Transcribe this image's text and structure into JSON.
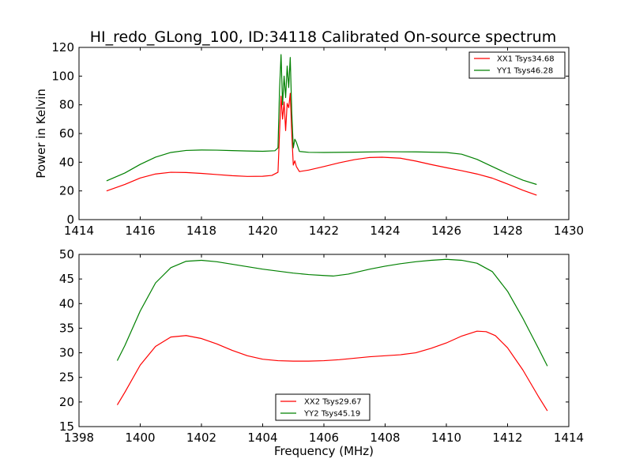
{
  "chart_data": [
    {
      "type": "line",
      "title": "HI_redo_GLong_100, ID:34118 Calibrated On-source spectrum",
      "xlabel": "",
      "ylabel": "Power in Kelvin",
      "xlim": [
        1414,
        1430
      ],
      "ylim": [
        0,
        120
      ],
      "xticks": [
        1414,
        1416,
        1418,
        1420,
        1422,
        1424,
        1426,
        1428,
        1430
      ],
      "yticks": [
        0,
        20,
        40,
        60,
        80,
        100,
        120
      ],
      "grid": false,
      "legend": "top-right",
      "series": [
        {
          "name": "XX1 Tsys34.68",
          "color": "#ff0000",
          "points": [
            [
              1414.9,
              20
            ],
            [
              1415.5,
              24.5
            ],
            [
              1416.0,
              29
            ],
            [
              1416.5,
              31.8
            ],
            [
              1417.0,
              33
            ],
            [
              1417.5,
              32.8
            ],
            [
              1418.0,
              32.2
            ],
            [
              1418.5,
              31.4
            ],
            [
              1419.0,
              30.6
            ],
            [
              1419.5,
              30.1
            ],
            [
              1420.0,
              30.2
            ],
            [
              1420.3,
              30.8
            ],
            [
              1420.5,
              33
            ],
            [
              1420.55,
              60
            ],
            [
              1420.6,
              86
            ],
            [
              1420.65,
              70
            ],
            [
              1420.7,
              82
            ],
            [
              1420.75,
              62
            ],
            [
              1420.8,
              81
            ],
            [
              1420.85,
              78
            ],
            [
              1420.9,
              88
            ],
            [
              1420.95,
              60
            ],
            [
              1421.0,
              38
            ],
            [
              1421.05,
              41
            ],
            [
              1421.1,
              37
            ],
            [
              1421.2,
              33.5
            ],
            [
              1421.5,
              34.5
            ],
            [
              1422.0,
              37
            ],
            [
              1422.5,
              39.6
            ],
            [
              1423.0,
              41.8
            ],
            [
              1423.5,
              43.3
            ],
            [
              1423.9,
              43.5
            ],
            [
              1424.5,
              42.8
            ],
            [
              1425.0,
              40.8
            ],
            [
              1425.5,
              38.4
            ],
            [
              1426.0,
              36.2
            ],
            [
              1426.5,
              34.1
            ],
            [
              1427.0,
              31.8
            ],
            [
              1427.5,
              28.9
            ],
            [
              1428.0,
              24.8
            ],
            [
              1428.5,
              20.5
            ],
            [
              1428.95,
              17
            ]
          ]
        },
        {
          "name": "YY1 Tsys46.28",
          "color": "#008000",
          "points": [
            [
              1414.9,
              27
            ],
            [
              1415.5,
              32.5
            ],
            [
              1416.0,
              38.5
            ],
            [
              1416.5,
              43.5
            ],
            [
              1417.0,
              46.8
            ],
            [
              1417.5,
              48.2
            ],
            [
              1418.0,
              48.5
            ],
            [
              1418.5,
              48.4
            ],
            [
              1419.0,
              48.1
            ],
            [
              1419.5,
              47.8
            ],
            [
              1420.0,
              47.6
            ],
            [
              1420.4,
              48
            ],
            [
              1420.5,
              50
            ],
            [
              1420.55,
              90
            ],
            [
              1420.6,
              115
            ],
            [
              1420.65,
              80
            ],
            [
              1420.7,
              100
            ],
            [
              1420.75,
              85
            ],
            [
              1420.8,
              107
            ],
            [
              1420.85,
              92
            ],
            [
              1420.9,
              113
            ],
            [
              1420.95,
              75
            ],
            [
              1421.0,
              50
            ],
            [
              1421.05,
              56
            ],
            [
              1421.1,
              54
            ],
            [
              1421.2,
              47.5
            ],
            [
              1421.5,
              46.9
            ],
            [
              1422.0,
              46.8
            ],
            [
              1423.0,
              47
            ],
            [
              1424.0,
              47.3
            ],
            [
              1425.0,
              47.2
            ],
            [
              1426.0,
              46.8
            ],
            [
              1426.5,
              45.6
            ],
            [
              1427.0,
              42
            ],
            [
              1427.5,
              37
            ],
            [
              1428.0,
              32
            ],
            [
              1428.5,
              27.5
            ],
            [
              1428.95,
              24.5
            ]
          ]
        }
      ]
    },
    {
      "type": "line",
      "title": "",
      "xlabel": "Frequency (MHz)",
      "ylabel": "",
      "xlim": [
        1398,
        1414
      ],
      "ylim": [
        15,
        50
      ],
      "xticks": [
        1398,
        1400,
        1402,
        1404,
        1406,
        1408,
        1410,
        1412,
        1414
      ],
      "yticks": [
        15,
        20,
        25,
        30,
        35,
        40,
        45,
        50
      ],
      "grid": false,
      "legend": "bottom-center",
      "series": [
        {
          "name": "XX2 Tsys29.67",
          "color": "#ff0000",
          "points": [
            [
              1399.25,
              19.4
            ],
            [
              1399.5,
              22
            ],
            [
              1400.0,
              27.5
            ],
            [
              1400.5,
              31.3
            ],
            [
              1401.0,
              33.2
            ],
            [
              1401.5,
              33.5
            ],
            [
              1402.0,
              32.9
            ],
            [
              1402.5,
              31.8
            ],
            [
              1403.0,
              30.5
            ],
            [
              1403.5,
              29.4
            ],
            [
              1404.0,
              28.7
            ],
            [
              1404.5,
              28.4
            ],
            [
              1405.0,
              28.3
            ],
            [
              1405.5,
              28.3
            ],
            [
              1406.0,
              28.4
            ],
            [
              1406.5,
              28.6
            ],
            [
              1407.0,
              28.9
            ],
            [
              1407.5,
              29.2
            ],
            [
              1408.0,
              29.4
            ],
            [
              1408.5,
              29.6
            ],
            [
              1409.0,
              30
            ],
            [
              1409.5,
              30.9
            ],
            [
              1410.0,
              32
            ],
            [
              1410.5,
              33.4
            ],
            [
              1411.0,
              34.4
            ],
            [
              1411.3,
              34.3
            ],
            [
              1411.6,
              33.5
            ],
            [
              1412.0,
              31
            ],
            [
              1412.5,
              26.5
            ],
            [
              1413.0,
              21.2
            ],
            [
              1413.3,
              18.2
            ]
          ]
        },
        {
          "name": "YY2 Tsys45.19",
          "color": "#008000",
          "points": [
            [
              1399.25,
              28.4
            ],
            [
              1399.5,
              31.5
            ],
            [
              1400.0,
              38.5
            ],
            [
              1400.5,
              44.2
            ],
            [
              1401.0,
              47.3
            ],
            [
              1401.5,
              48.6
            ],
            [
              1402.0,
              48.8
            ],
            [
              1402.5,
              48.5
            ],
            [
              1403.0,
              48
            ],
            [
              1403.5,
              47.5
            ],
            [
              1404.0,
              47
            ],
            [
              1404.5,
              46.6
            ],
            [
              1405.0,
              46.2
            ],
            [
              1405.5,
              45.9
            ],
            [
              1406.0,
              45.7
            ],
            [
              1406.3,
              45.6
            ],
            [
              1406.8,
              46
            ],
            [
              1407.5,
              47
            ],
            [
              1408.0,
              47.6
            ],
            [
              1408.5,
              48.1
            ],
            [
              1409.0,
              48.5
            ],
            [
              1409.5,
              48.8
            ],
            [
              1410.0,
              49
            ],
            [
              1410.5,
              48.8
            ],
            [
              1411.0,
              48.2
            ],
            [
              1411.5,
              46.5
            ],
            [
              1412.0,
              42.5
            ],
            [
              1412.5,
              37
            ],
            [
              1413.0,
              31
            ],
            [
              1413.3,
              27.3
            ]
          ]
        }
      ]
    }
  ]
}
